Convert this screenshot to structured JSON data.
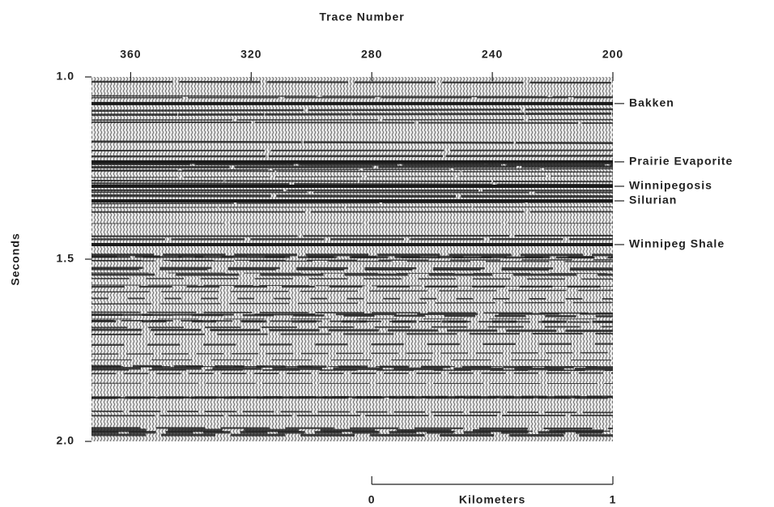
{
  "chart_data": {
    "type": "seismic",
    "title": "Trace Number",
    "ylabel": "Seconds",
    "xlim": [
      373,
      200
    ],
    "xticks": [
      360,
      320,
      280,
      240,
      200
    ],
    "ylim": [
      2,
      1
    ],
    "yticks": [
      {
        "value": 1,
        "label": "1.0"
      },
      {
        "value": 1.5,
        "label": "1.5"
      },
      {
        "value": 2,
        "label": "2.0"
      }
    ],
    "annotations": [
      {
        "text": "Bakken",
        "y": 1.073
      },
      {
        "text": "Prairie Evaporite",
        "y": 1.233
      },
      {
        "text": "Winnipegosis",
        "y": 1.3
      },
      {
        "text": "Silurian",
        "y": 1.34
      },
      {
        "text": "Winnipeg Shale",
        "y": 1.46
      }
    ],
    "scale_bar": {
      "title": "Kilometers",
      "x": [
        280,
        200
      ],
      "labels": [
        0,
        1
      ]
    }
  }
}
